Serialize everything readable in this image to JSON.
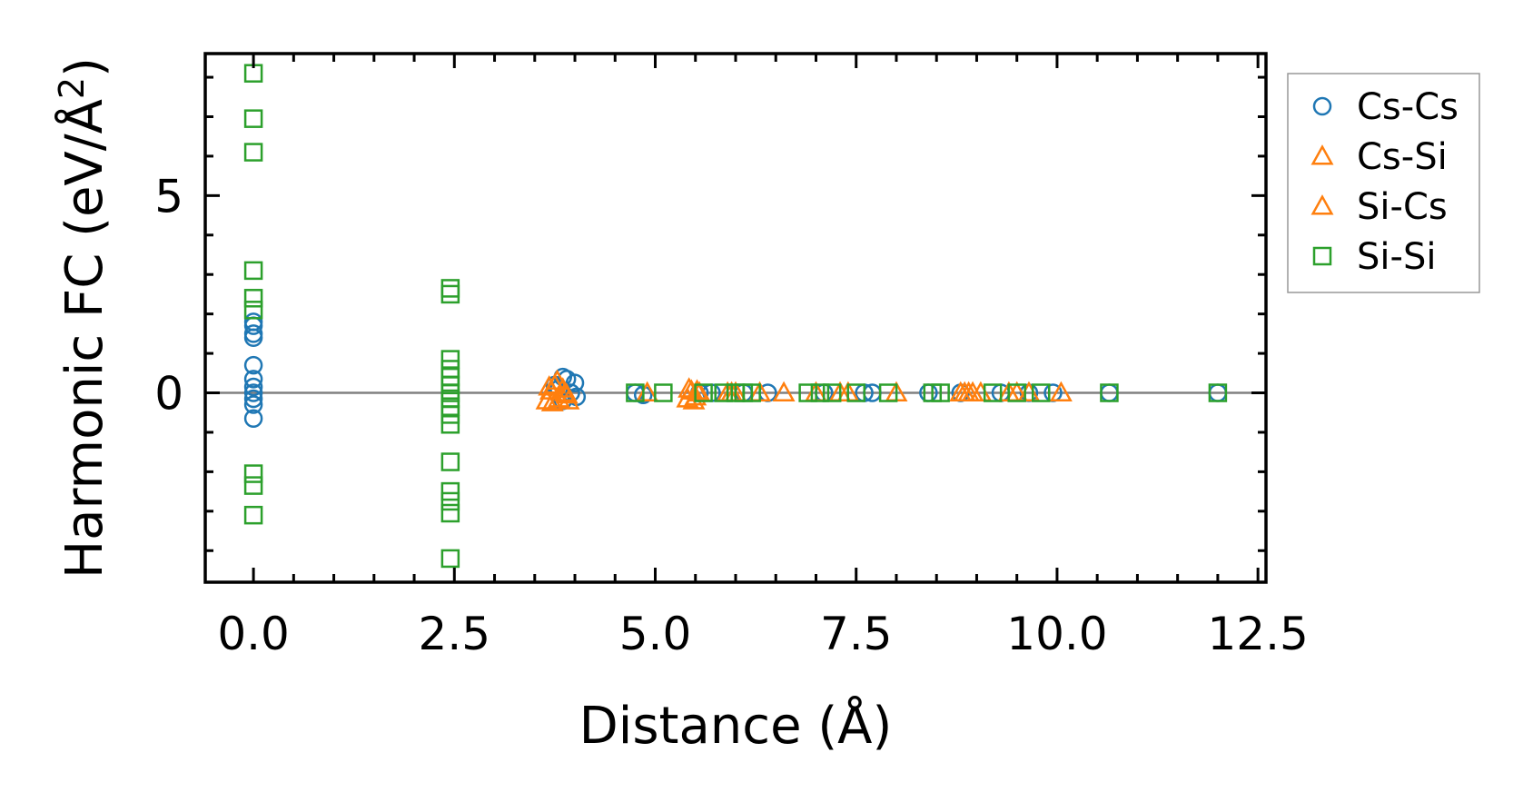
{
  "chart_data": {
    "type": "scatter",
    "title": "",
    "xlabel": "Distance (Å)",
    "ylabel_main": "Harmonic FC (eV/Å",
    "ylabel_sup": "2",
    "ylabel_close": ")",
    "xlim": [
      -0.6,
      12.6
    ],
    "ylim": [
      -4.8,
      8.6
    ],
    "xticks": [
      0.0,
      2.5,
      5.0,
      7.5,
      10.0,
      12.5
    ],
    "xtick_labels": [
      "0.0",
      "2.5",
      "5.0",
      "7.5",
      "10.0",
      "12.5"
    ],
    "yticks": [
      0,
      5
    ],
    "ytick_labels": [
      "0",
      "5"
    ],
    "reference_line_y": 0,
    "legend_position": "outside right top",
    "series": [
      {
        "name": "Cs-Cs",
        "marker": "circle",
        "color": "#1f77b4",
        "points": [
          [
            0,
            1.8
          ],
          [
            0,
            1.7
          ],
          [
            0,
            1.5
          ],
          [
            0,
            1.4
          ],
          [
            0,
            0.7
          ],
          [
            0,
            0.35
          ],
          [
            0,
            0.15
          ],
          [
            0,
            0.0
          ],
          [
            0,
            -0.15
          ],
          [
            0,
            -0.3
          ],
          [
            0,
            -0.65
          ],
          [
            3.75,
            0.2
          ],
          [
            3.8,
            0.1
          ],
          [
            3.85,
            0.4
          ],
          [
            3.9,
            0.35
          ],
          [
            3.95,
            0.0
          ],
          [
            4.0,
            0.25
          ],
          [
            4.02,
            -0.1
          ],
          [
            3.85,
            -0.2
          ],
          [
            4.75,
            0.0
          ],
          [
            4.85,
            -0.05
          ],
          [
            5.55,
            0.0
          ],
          [
            5.7,
            0.0
          ],
          [
            6.1,
            0.0
          ],
          [
            6.4,
            0.0
          ],
          [
            7.1,
            0.0
          ],
          [
            7.6,
            0.0
          ],
          [
            7.7,
            0.0
          ],
          [
            8.4,
            0.0
          ],
          [
            8.8,
            0.0
          ],
          [
            9.3,
            0.0
          ],
          [
            9.65,
            0.0
          ],
          [
            9.95,
            0.0
          ],
          [
            10.65,
            0.0
          ],
          [
            12.0,
            0.0
          ]
        ]
      },
      {
        "name": "Cs-Si",
        "marker": "triangle",
        "color": "#ff7f0e",
        "points": [
          [
            3.65,
            -0.2
          ],
          [
            3.7,
            0.05
          ],
          [
            3.75,
            0.2
          ],
          [
            3.8,
            -0.15
          ],
          [
            3.85,
            0.1
          ],
          [
            3.9,
            -0.05
          ],
          [
            4.9,
            0.0
          ],
          [
            5.4,
            -0.15
          ],
          [
            5.45,
            0.05
          ],
          [
            5.5,
            -0.1
          ],
          [
            5.55,
            0.0
          ],
          [
            5.9,
            0.0
          ],
          [
            6.0,
            0.0
          ],
          [
            6.6,
            0.0
          ],
          [
            7.0,
            0.0
          ],
          [
            7.3,
            0.0
          ],
          [
            8.0,
            0.0
          ],
          [
            8.8,
            0.0
          ],
          [
            8.9,
            0.0
          ],
          [
            9.05,
            0.0
          ],
          [
            9.4,
            0.0
          ],
          [
            9.65,
            0.0
          ],
          [
            10.05,
            0.0
          ]
        ]
      },
      {
        "name": "Si-Cs",
        "marker": "triangle",
        "color": "#ff7f0e",
        "points": [
          [
            3.68,
            0.15
          ],
          [
            3.72,
            -0.25
          ],
          [
            3.78,
            0.3
          ],
          [
            3.88,
            0.0
          ],
          [
            3.92,
            -0.2
          ],
          [
            5.42,
            0.1
          ],
          [
            5.48,
            -0.2
          ],
          [
            5.52,
            0.05
          ],
          [
            5.95,
            0.0
          ],
          [
            6.3,
            0.0
          ],
          [
            7.4,
            0.0
          ],
          [
            8.85,
            0.0
          ],
          [
            8.95,
            0.0
          ],
          [
            9.5,
            0.0
          ]
        ]
      },
      {
        "name": "Si-Si",
        "marker": "square",
        "color": "#2ca02c",
        "points": [
          [
            0,
            8.1
          ],
          [
            0,
            6.95
          ],
          [
            0,
            6.1
          ],
          [
            0,
            3.1
          ],
          [
            0,
            2.4
          ],
          [
            0,
            2.1
          ],
          [
            0,
            -2.05
          ],
          [
            0,
            -2.35
          ],
          [
            0,
            -3.1
          ],
          [
            2.45,
            2.65
          ],
          [
            2.45,
            2.5
          ],
          [
            2.45,
            0.85
          ],
          [
            2.45,
            0.6
          ],
          [
            2.45,
            0.4
          ],
          [
            2.45,
            0.2
          ],
          [
            2.45,
            0.0
          ],
          [
            2.45,
            -0.15
          ],
          [
            2.45,
            -0.35
          ],
          [
            2.45,
            -0.55
          ],
          [
            2.45,
            -0.8
          ],
          [
            2.45,
            -1.75
          ],
          [
            2.45,
            -2.5
          ],
          [
            2.45,
            -2.75
          ],
          [
            2.45,
            -3.05
          ],
          [
            2.45,
            -4.2
          ],
          [
            4.75,
            0.0
          ],
          [
            5.1,
            0.0
          ],
          [
            5.6,
            0.0
          ],
          [
            5.85,
            0.0
          ],
          [
            6.0,
            0.0
          ],
          [
            6.1,
            0.0
          ],
          [
            6.2,
            0.0
          ],
          [
            6.9,
            0.0
          ],
          [
            7.05,
            0.0
          ],
          [
            7.2,
            0.0
          ],
          [
            7.5,
            0.0
          ],
          [
            7.9,
            0.0
          ],
          [
            8.45,
            0.0
          ],
          [
            8.55,
            0.0
          ],
          [
            9.2,
            0.0
          ],
          [
            9.5,
            0.0
          ],
          [
            9.8,
            0.0
          ],
          [
            10.65,
            0.0
          ],
          [
            12.0,
            0.0
          ]
        ]
      }
    ]
  }
}
